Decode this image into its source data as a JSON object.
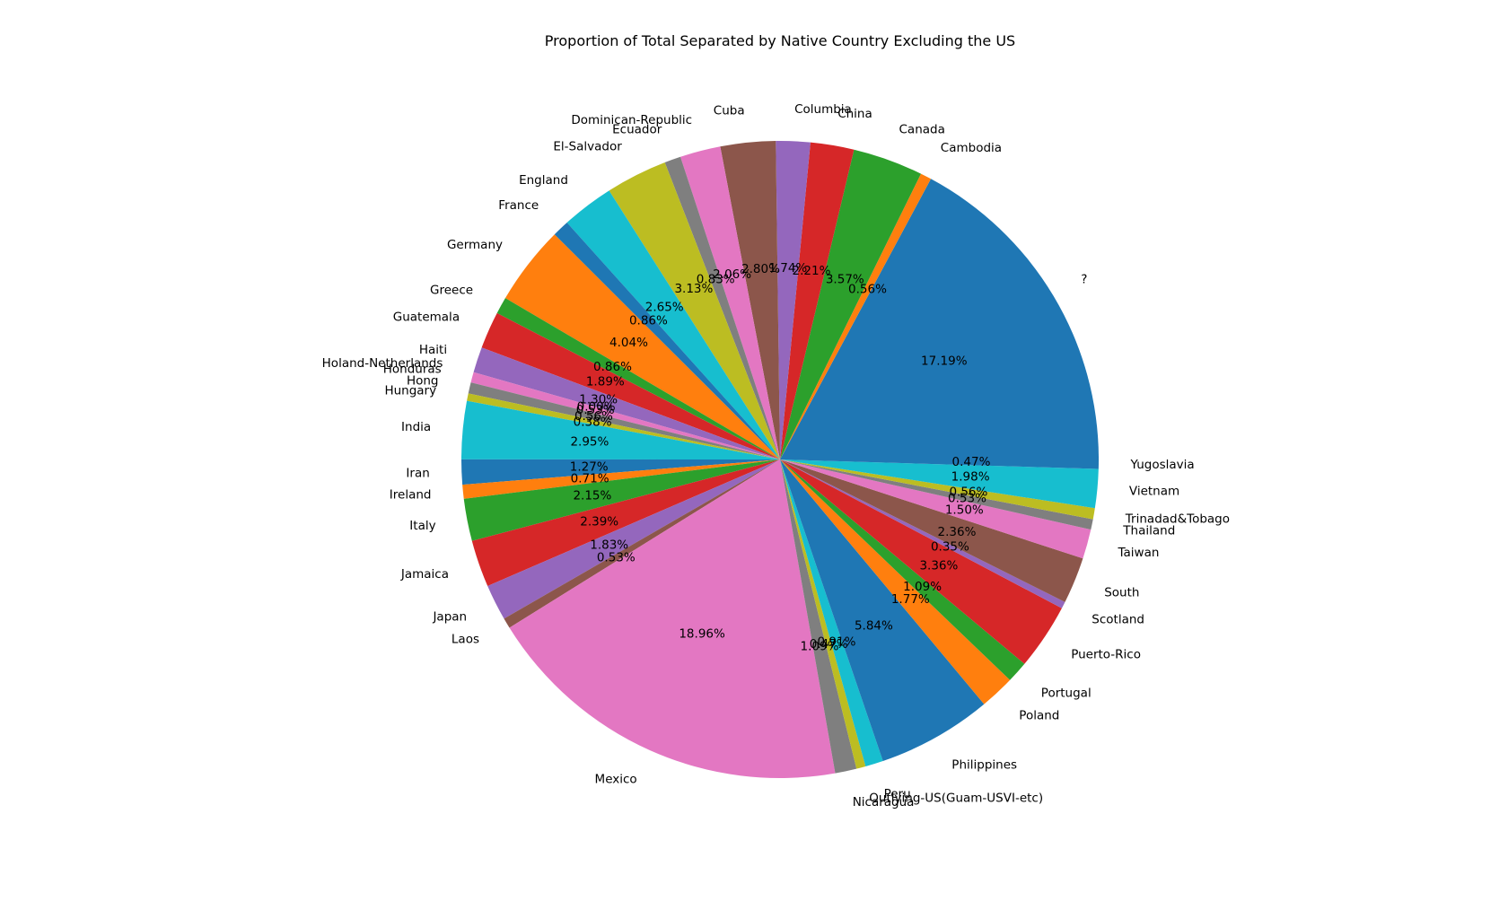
{
  "chart_data": {
    "type": "pie",
    "title": "Proportion of Total Separated by Native Country Excluding the US",
    "start_angle_deg": 0,
    "direction": "counterclockwise",
    "colors": [
      "#1f77b4",
      "#ff7f0e",
      "#2ca02c",
      "#d62728",
      "#9467bd",
      "#8c564b",
      "#e377c2",
      "#7f7f7f",
      "#bcbd22",
      "#17becf"
    ],
    "slices": [
      {
        "label": "?",
        "value": 17.19,
        "pct_label": "17.19%"
      },
      {
        "label": "Cambodia",
        "value": 0.56,
        "pct_label": "0.56%"
      },
      {
        "label": "Canada",
        "value": 3.57,
        "pct_label": "3.57%"
      },
      {
        "label": "China",
        "value": 2.21,
        "pct_label": "2.21%"
      },
      {
        "label": "Columbia",
        "value": 1.74,
        "pct_label": "1.74%"
      },
      {
        "label": "Cuba",
        "value": 2.8,
        "pct_label": "2.80%"
      },
      {
        "label": "Dominican-Republic",
        "value": 2.06,
        "pct_label": "2.06%"
      },
      {
        "label": "Ecuador",
        "value": 0.83,
        "pct_label": "0.83%"
      },
      {
        "label": "El-Salvador",
        "value": 3.13,
        "pct_label": "3.13%"
      },
      {
        "label": "England",
        "value": 2.65,
        "pct_label": "2.65%"
      },
      {
        "label": "France",
        "value": 0.86,
        "pct_label": "0.86%"
      },
      {
        "label": "Germany",
        "value": 4.04,
        "pct_label": "4.04%"
      },
      {
        "label": "Greece",
        "value": 0.86,
        "pct_label": "0.86%"
      },
      {
        "label": "Guatemala",
        "value": 1.89,
        "pct_label": "1.89%"
      },
      {
        "label": "Haiti",
        "value": 1.3,
        "pct_label": "1.30%"
      },
      {
        "label": "Holand-Netherlands",
        "value": 0.0,
        "pct_label": "0.00%"
      },
      {
        "label": "Honduras",
        "value": 0.53,
        "pct_label": "0.53%"
      },
      {
        "label": "Hong",
        "value": 0.56,
        "pct_label": "0.56%"
      },
      {
        "label": "Hungary",
        "value": 0.38,
        "pct_label": "0.38%"
      },
      {
        "label": "India",
        "value": 2.95,
        "pct_label": "2.95%"
      },
      {
        "label": "Iran",
        "value": 1.27,
        "pct_label": "1.27%"
      },
      {
        "label": "Ireland",
        "value": 0.71,
        "pct_label": "0.71%"
      },
      {
        "label": "Italy",
        "value": 2.15,
        "pct_label": "2.15%"
      },
      {
        "label": "Jamaica",
        "value": 2.39,
        "pct_label": "2.39%"
      },
      {
        "label": "Japan",
        "value": 1.83,
        "pct_label": "1.83%"
      },
      {
        "label": "Laos",
        "value": 0.53,
        "pct_label": "0.53%"
      },
      {
        "label": "Mexico",
        "value": 18.96,
        "pct_label": "18.96%"
      },
      {
        "label": "Nicaragua",
        "value": 1.09,
        "pct_label": "1.09%"
      },
      {
        "label": "Outlying-US(Guam-USVI-etc)",
        "value": 0.47,
        "pct_label": "0.47%"
      },
      {
        "label": "Peru",
        "value": 0.91,
        "pct_label": "0.91%"
      },
      {
        "label": "Philippines",
        "value": 5.84,
        "pct_label": "5.84%"
      },
      {
        "label": "Poland",
        "value": 1.77,
        "pct_label": "1.77%"
      },
      {
        "label": "Portugal",
        "value": 1.09,
        "pct_label": "1.09%"
      },
      {
        "label": "Puerto-Rico",
        "value": 3.36,
        "pct_label": "3.36%"
      },
      {
        "label": "Scotland",
        "value": 0.35,
        "pct_label": "0.35%"
      },
      {
        "label": "South",
        "value": 2.36,
        "pct_label": "2.36%"
      },
      {
        "label": "Taiwan",
        "value": 1.5,
        "pct_label": "1.50%"
      },
      {
        "label": "Thailand",
        "value": 0.53,
        "pct_label": "0.53%"
      },
      {
        "label": "Trinadad&Tobago",
        "value": 0.56,
        "pct_label": "0.56%"
      },
      {
        "label": "Vietnam",
        "value": 1.98,
        "pct_label": "1.98%"
      },
      {
        "label": "Yugoslavia",
        "value": 0.47,
        "pct_label": "0.47%"
      }
    ]
  }
}
